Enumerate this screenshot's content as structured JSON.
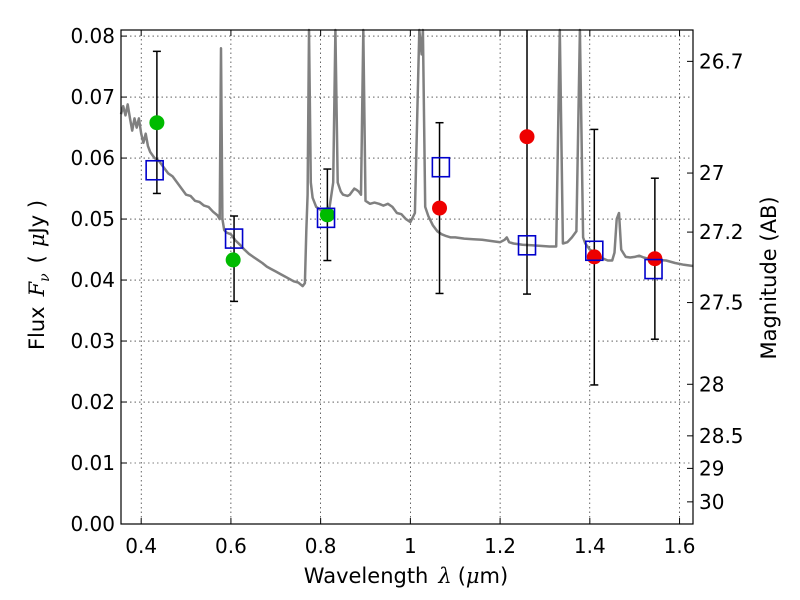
{
  "chart_data": {
    "type": "scatter",
    "xlabel": {
      "prefix": "Wavelength",
      "symbol": "λ",
      "unit_open": "(",
      "unit_mu": "μ",
      "unit_rest": "m)"
    },
    "ylabel": {
      "prefix": "Flux",
      "symbol": "F",
      "subscript": "ν",
      "unit_open": "(",
      "unit_mu": "μ",
      "unit_rest": "Jy )"
    },
    "y2label": "Magnitude (AB)",
    "xlim": [
      0.355,
      1.63
    ],
    "ylim": [
      0.0,
      0.081
    ],
    "grid": true,
    "x_ticks": [
      {
        "value": 0.4,
        "label": "0.4"
      },
      {
        "value": 0.6,
        "label": "0.6"
      },
      {
        "value": 0.8,
        "label": "0.8"
      },
      {
        "value": 1.0,
        "label": "1"
      },
      {
        "value": 1.2,
        "label": "1.2"
      },
      {
        "value": 1.4,
        "label": "1.4"
      },
      {
        "value": 1.6,
        "label": "1.6"
      }
    ],
    "y_ticks": [
      {
        "value": 0.0,
        "label": "0.00"
      },
      {
        "value": 0.01,
        "label": "0.01"
      },
      {
        "value": 0.02,
        "label": "0.02"
      },
      {
        "value": 0.03,
        "label": "0.03"
      },
      {
        "value": 0.04,
        "label": "0.04"
      },
      {
        "value": 0.05,
        "label": "0.05"
      },
      {
        "value": 0.06,
        "label": "0.06"
      },
      {
        "value": 0.07,
        "label": "0.07"
      },
      {
        "value": 0.08,
        "label": "0.08"
      }
    ],
    "y2_ticks": [
      {
        "mag": 26.7,
        "label": "26.7"
      },
      {
        "mag": 27.0,
        "label": "27"
      },
      {
        "mag": 27.2,
        "label": "27.2"
      },
      {
        "mag": 27.5,
        "label": "27.5"
      },
      {
        "mag": 28.0,
        "label": "28"
      },
      {
        "mag": 28.5,
        "label": "28.5"
      },
      {
        "mag": 29.0,
        "label": "29"
      },
      {
        "mag": 30.0,
        "label": "30"
      }
    ],
    "series": [
      {
        "kind": "model_spectrum",
        "color": "#808080",
        "points": [
          [
            0.355,
            0.0672
          ],
          [
            0.36,
            0.0685
          ],
          [
            0.365,
            0.067
          ],
          [
            0.37,
            0.0688
          ],
          [
            0.375,
            0.0665
          ],
          [
            0.38,
            0.0645
          ],
          [
            0.385,
            0.0665
          ],
          [
            0.39,
            0.065
          ],
          [
            0.395,
            0.0665
          ],
          [
            0.4,
            0.064
          ],
          [
            0.405,
            0.0625
          ],
          [
            0.41,
            0.064
          ],
          [
            0.415,
            0.062
          ],
          [
            0.42,
            0.061
          ],
          [
            0.43,
            0.06
          ],
          [
            0.44,
            0.0595
          ],
          [
            0.45,
            0.0585
          ],
          [
            0.46,
            0.0575
          ],
          [
            0.47,
            0.057
          ],
          [
            0.48,
            0.056
          ],
          [
            0.49,
            0.055
          ],
          [
            0.5,
            0.054
          ],
          [
            0.51,
            0.0538
          ],
          [
            0.52,
            0.053
          ],
          [
            0.53,
            0.0528
          ],
          [
            0.54,
            0.0522
          ],
          [
            0.55,
            0.052
          ],
          [
            0.56,
            0.0512
          ],
          [
            0.57,
            0.0506
          ],
          [
            0.575,
            0.05
          ],
          [
            0.578,
            0.078
          ],
          [
            0.581,
            0.05
          ],
          [
            0.585,
            0.0482
          ],
          [
            0.59,
            0.0478
          ],
          [
            0.6,
            0.0475
          ],
          [
            0.61,
            0.0465
          ],
          [
            0.62,
            0.0458
          ],
          [
            0.63,
            0.045
          ],
          [
            0.64,
            0.0443
          ],
          [
            0.65,
            0.0438
          ],
          [
            0.66,
            0.0433
          ],
          [
            0.67,
            0.0428
          ],
          [
            0.68,
            0.0422
          ],
          [
            0.69,
            0.0418
          ],
          [
            0.7,
            0.0414
          ],
          [
            0.71,
            0.041
          ],
          [
            0.72,
            0.0406
          ],
          [
            0.73,
            0.0402
          ],
          [
            0.74,
            0.0398
          ],
          [
            0.75,
            0.0396
          ],
          [
            0.76,
            0.039
          ],
          [
            0.765,
            0.0395
          ],
          [
            0.768,
            0.048
          ],
          [
            0.771,
            0.054
          ],
          [
            0.774,
            0.081
          ],
          [
            0.778,
            0.056
          ],
          [
            0.782,
            0.0535
          ],
          [
            0.79,
            0.052
          ],
          [
            0.8,
            0.0515
          ],
          [
            0.81,
            0.051
          ],
          [
            0.82,
            0.052
          ],
          [
            0.828,
            0.056
          ],
          [
            0.833,
            0.081
          ],
          [
            0.838,
            0.056
          ],
          [
            0.845,
            0.0545
          ],
          [
            0.85,
            0.054
          ],
          [
            0.86,
            0.0538
          ],
          [
            0.865,
            0.054
          ],
          [
            0.87,
            0.0545
          ],
          [
            0.875,
            0.055
          ],
          [
            0.88,
            0.0548
          ],
          [
            0.885,
            0.0545
          ],
          [
            0.89,
            0.054
          ],
          [
            0.895,
            0.081
          ],
          [
            0.9,
            0.053
          ],
          [
            0.91,
            0.0525
          ],
          [
            0.92,
            0.0527
          ],
          [
            0.93,
            0.0525
          ],
          [
            0.94,
            0.0522
          ],
          [
            0.95,
            0.0525
          ],
          [
            0.96,
            0.052
          ],
          [
            0.97,
            0.051
          ],
          [
            0.98,
            0.0508
          ],
          [
            0.99,
            0.05
          ],
          [
            1.0,
            0.0495
          ],
          [
            1.01,
            0.051
          ],
          [
            1.02,
            0.081
          ],
          [
            1.025,
            0.077
          ],
          [
            1.028,
            0.081
          ],
          [
            1.033,
            0.052
          ],
          [
            1.04,
            0.0505
          ],
          [
            1.05,
            0.049
          ],
          [
            1.06,
            0.048
          ],
          [
            1.07,
            0.0475
          ],
          [
            1.08,
            0.0472
          ],
          [
            1.09,
            0.047
          ],
          [
            1.1,
            0.047
          ],
          [
            1.12,
            0.0468
          ],
          [
            1.14,
            0.0467
          ],
          [
            1.16,
            0.0466
          ],
          [
            1.18,
            0.0464
          ],
          [
            1.2,
            0.0462
          ],
          [
            1.21,
            0.0466
          ],
          [
            1.215,
            0.047
          ],
          [
            1.22,
            0.0462
          ],
          [
            1.23,
            0.046
          ],
          [
            1.25,
            0.0458
          ],
          [
            1.27,
            0.0457
          ],
          [
            1.29,
            0.0456
          ],
          [
            1.31,
            0.0455
          ],
          [
            1.325,
            0.0455
          ],
          [
            1.333,
            0.081
          ],
          [
            1.34,
            0.046
          ],
          [
            1.35,
            0.0462
          ],
          [
            1.36,
            0.047
          ],
          [
            1.37,
            0.048
          ],
          [
            1.378,
            0.081
          ],
          [
            1.385,
            0.047
          ],
          [
            1.39,
            0.046
          ],
          [
            1.4,
            0.045
          ],
          [
            1.41,
            0.0445
          ],
          [
            1.42,
            0.044
          ],
          [
            1.43,
            0.0435
          ],
          [
            1.44,
            0.0432
          ],
          [
            1.45,
            0.0432
          ],
          [
            1.455,
            0.0445
          ],
          [
            1.46,
            0.05
          ],
          [
            1.465,
            0.051
          ],
          [
            1.47,
            0.045
          ],
          [
            1.48,
            0.0438
          ],
          [
            1.49,
            0.0437
          ],
          [
            1.5,
            0.0438
          ],
          [
            1.51,
            0.044
          ],
          [
            1.52,
            0.0437
          ],
          [
            1.53,
            0.0435
          ],
          [
            1.55,
            0.0433
          ],
          [
            1.57,
            0.0432
          ],
          [
            1.59,
            0.0428
          ],
          [
            1.61,
            0.0425
          ],
          [
            1.63,
            0.0423
          ]
        ]
      },
      {
        "kind": "photometry",
        "color": "#00bb00",
        "points": [
          {
            "x": 0.435,
            "y": 0.0658
          },
          {
            "x": 0.605,
            "y": 0.0433
          },
          {
            "x": 0.815,
            "y": 0.0507
          }
        ]
      },
      {
        "kind": "photometry",
        "color": "#ee0000",
        "points": [
          {
            "x": 1.065,
            "y": 0.0518
          },
          {
            "x": 1.26,
            "y": 0.0635
          },
          {
            "x": 1.41,
            "y": 0.0438
          },
          {
            "x": 1.545,
            "y": 0.0435
          }
        ]
      },
      {
        "kind": "synthetic_photometry",
        "color": "#0000cc",
        "points": [
          {
            "x": 0.43,
            "y": 0.058
          },
          {
            "x": 0.607,
            "y": 0.0468
          },
          {
            "x": 0.812,
            "y": 0.0502
          },
          {
            "x": 1.068,
            "y": 0.0585
          },
          {
            "x": 1.26,
            "y": 0.0457
          },
          {
            "x": 1.41,
            "y": 0.0448
          },
          {
            "x": 1.542,
            "y": 0.0418
          }
        ]
      }
    ],
    "error_bars": [
      {
        "x": 0.435,
        "low": 0.0542,
        "high": 0.0775
      },
      {
        "x": 0.607,
        "low": 0.0365,
        "high": 0.0505
      },
      {
        "x": 0.815,
        "low": 0.0432,
        "high": 0.0582
      },
      {
        "x": 1.065,
        "low": 0.0378,
        "high": 0.0658
      },
      {
        "x": 1.26,
        "low": 0.0377,
        "high": 0.081
      },
      {
        "x": 1.41,
        "low": 0.0228,
        "high": 0.0647
      },
      {
        "x": 1.545,
        "low": 0.0303,
        "high": 0.0567
      }
    ]
  }
}
